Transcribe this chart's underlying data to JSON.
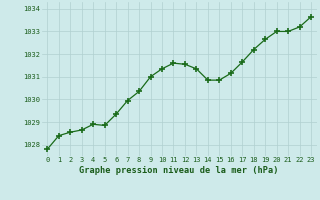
{
  "x": [
    0,
    1,
    2,
    3,
    4,
    5,
    6,
    7,
    8,
    9,
    10,
    11,
    12,
    13,
    14,
    15,
    16,
    17,
    18,
    19,
    20,
    21,
    22,
    23
  ],
  "y": [
    1027.8,
    1028.4,
    1028.55,
    1028.65,
    1028.9,
    1028.85,
    1029.35,
    1029.95,
    1030.35,
    1031.0,
    1031.35,
    1031.6,
    1031.55,
    1031.35,
    1030.85,
    1030.85,
    1031.15,
    1031.65,
    1032.2,
    1032.65,
    1033.0,
    1033.0,
    1033.2,
    1033.65
  ],
  "line_color": "#1a6b1a",
  "marker": "+",
  "marker_size": 4.0,
  "bg_color": "#ceeaea",
  "grid_color": "#b0d0d0",
  "xlabel": "Graphe pression niveau de la mer (hPa)",
  "xlabel_color": "#1a5c1a",
  "tick_color": "#1a5c1a",
  "ylim": [
    1027.5,
    1034.3
  ],
  "xlim": [
    -0.5,
    23.5
  ],
  "yticks": [
    1028,
    1029,
    1030,
    1031,
    1032,
    1033,
    1034
  ],
  "xticks": [
    0,
    1,
    2,
    3,
    4,
    5,
    6,
    7,
    8,
    9,
    10,
    11,
    12,
    13,
    14,
    15,
    16,
    17,
    18,
    19,
    20,
    21,
    22,
    23
  ]
}
